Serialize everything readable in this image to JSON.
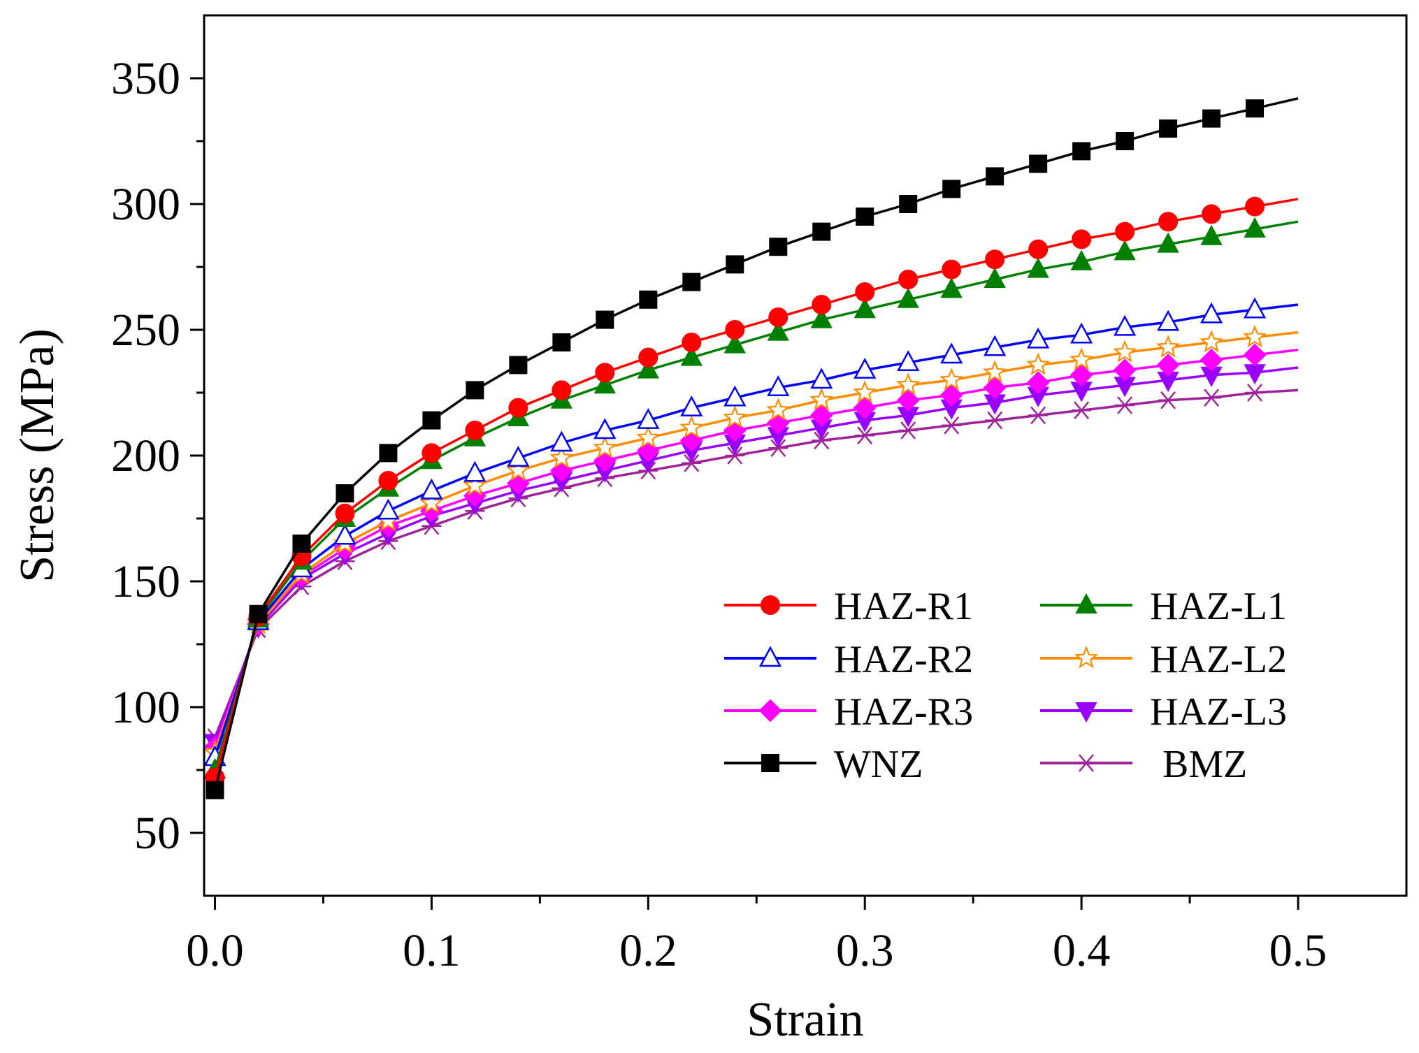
{
  "chart_data": {
    "type": "line",
    "title": "",
    "xlabel": "Strain",
    "ylabel": "Stress (MPa)",
    "xlim": [
      -0.005,
      0.55
    ],
    "ylim": [
      25,
      375
    ],
    "xticks": [
      0.0,
      0.1,
      0.2,
      0.3,
      0.4,
      0.5
    ],
    "xtick_labels": [
      "0.0",
      "0.1",
      "0.2",
      "0.3",
      "0.4",
      "0.5"
    ],
    "yticks": [
      50,
      100,
      150,
      200,
      250,
      300,
      350
    ],
    "ytick_labels": [
      "50",
      "100",
      "150",
      "200",
      "250",
      "300",
      "350"
    ],
    "grid": false,
    "legend_position": "bottom-right",
    "x": [
      0.0,
      0.02,
      0.04,
      0.06,
      0.08,
      0.1,
      0.12,
      0.14,
      0.16,
      0.18,
      0.2,
      0.22,
      0.24,
      0.26,
      0.28,
      0.3,
      0.32,
      0.34,
      0.36,
      0.38,
      0.4,
      0.42,
      0.44,
      0.46,
      0.48,
      0.5
    ],
    "series": [
      {
        "name": "HAZ-R1",
        "color": "#ff0000",
        "marker": "circle",
        "values": [
          72,
          136,
          160,
          177,
          190,
          201,
          210,
          219,
          226,
          233,
          239,
          245,
          250,
          255,
          260,
          265,
          270,
          274,
          278,
          282,
          286,
          289,
          293,
          296,
          299,
          302
        ]
      },
      {
        "name": "HAZ-L1",
        "color": "#008000",
        "marker": "triangle-up",
        "values": [
          75,
          135,
          158,
          175,
          187,
          198,
          207,
          215,
          222,
          228,
          234,
          239,
          244,
          249,
          254,
          258,
          262,
          266,
          270,
          274,
          277,
          281,
          284,
          287,
          290,
          293
        ]
      },
      {
        "name": "HAZ-R2",
        "color": "#0000ff",
        "marker": "triangle-up-open",
        "values": [
          80,
          134,
          155,
          168,
          178,
          186,
          193,
          199,
          205,
          210,
          214,
          219,
          223,
          227,
          230,
          234,
          237,
          240,
          243,
          246,
          248,
          251,
          253,
          256,
          258,
          260
        ]
      },
      {
        "name": "HAZ-L2",
        "color": "#ff8c00",
        "marker": "star-open",
        "values": [
          82,
          133,
          153,
          165,
          174,
          181,
          188,
          194,
          199,
          203,
          207,
          211,
          215,
          218,
          222,
          225,
          228,
          230,
          233,
          236,
          238,
          241,
          243,
          245,
          247,
          249
        ]
      },
      {
        "name": "HAZ-R3",
        "color": "#ff00ff",
        "marker": "diamond",
        "values": [
          84,
          133,
          152,
          163,
          172,
          178,
          184,
          189,
          194,
          198,
          202,
          206,
          210,
          213,
          216,
          219,
          222,
          224,
          227,
          229,
          232,
          234,
          236,
          238,
          240,
          242
        ]
      },
      {
        "name": "HAZ-L3",
        "color": "#9900ff",
        "marker": "triangle-down",
        "values": [
          86,
          132,
          151,
          161,
          169,
          176,
          181,
          186,
          190,
          194,
          198,
          202,
          205,
          208,
          211,
          214,
          216,
          219,
          221,
          224,
          226,
          228,
          230,
          232,
          233,
          235
        ]
      },
      {
        "name": "WNZ",
        "color": "#000000",
        "marker": "square",
        "values": [
          67,
          137,
          165,
          185,
          201,
          214,
          226,
          236,
          245,
          254,
          262,
          269,
          276,
          283,
          289,
          295,
          300,
          306,
          311,
          316,
          321,
          325,
          330,
          334,
          338,
          342
        ]
      },
      {
        "name": "BMZ",
        "color": "#a0229a",
        "marker": "asterisk",
        "values": [
          88,
          131,
          148,
          158,
          166,
          172,
          178,
          183,
          187,
          191,
          194,
          197,
          200,
          203,
          206,
          208,
          210,
          212,
          214,
          216,
          218,
          220,
          222,
          223,
          225,
          226
        ]
      }
    ]
  }
}
